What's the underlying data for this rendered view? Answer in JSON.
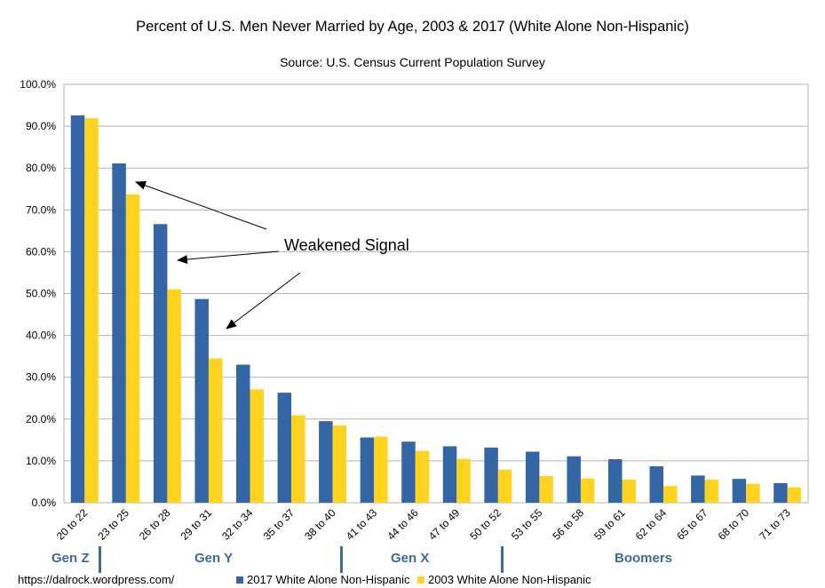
{
  "chart_data": {
    "type": "bar",
    "title": "Percent of U.S. Men Never Married by Age, 2003 & 2017 (White Alone Non-Hispanic)",
    "subtitle": "Source:  U.S. Census Current Population Survey",
    "xlabel": "",
    "ylabel": "",
    "ylim": [
      0,
      100
    ],
    "yticks": [
      "0.0%",
      "10.0%",
      "20.0%",
      "30.0%",
      "40.0%",
      "50.0%",
      "60.0%",
      "70.0%",
      "80.0%",
      "90.0%",
      "100.0%"
    ],
    "grid": true,
    "legend_position": "bottom",
    "categories": [
      "20 to 22",
      "23 to 25",
      "26 to 28",
      "29 to 31",
      "32 to 34",
      "35 to 37",
      "38 to 40",
      "41 to 43",
      "44 to 46",
      "47 to 49",
      "50 to 52",
      "53 to 55",
      "56 to 58",
      "59 to 61",
      "62 to 64",
      "65 to 67",
      "68 to 70",
      "71 to 73"
    ],
    "series": [
      {
        "name": "2017 White Alone Non-Hispanic",
        "color": "#3465a4",
        "values": [
          92.6,
          81.1,
          66.6,
          48.7,
          33.0,
          26.3,
          19.5,
          15.6,
          14.6,
          13.5,
          13.2,
          12.2,
          11.1,
          10.4,
          8.7,
          6.5,
          5.7,
          4.7
        ]
      },
      {
        "name": "2003 White Alone Non-Hispanic",
        "color": "#ffd320",
        "values": [
          91.9,
          73.7,
          51.0,
          34.5,
          27.1,
          20.9,
          18.5,
          15.8,
          12.4,
          10.5,
          7.9,
          6.4,
          5.8,
          5.5,
          4.0,
          5.5,
          4.5,
          3.7
        ]
      }
    ],
    "annotations": [
      {
        "text": "Weakened Signal"
      }
    ]
  },
  "generations": [
    {
      "label": "Gen Z"
    },
    {
      "label": "Gen Y"
    },
    {
      "label": "Gen X"
    },
    {
      "label": "Boomers"
    }
  ],
  "footer": {
    "url": "https://dalrock.wordpress.com/"
  }
}
